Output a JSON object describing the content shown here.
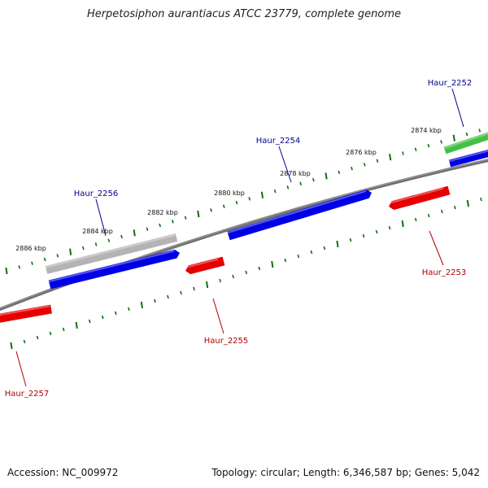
{
  "title": "Herpetosiphon aurantiacus ATCC 23779, complete genome",
  "footer": {
    "accession": "Accession: NC_009972",
    "summary": "Topology: circular; Length: 6,346,587 bp; Genes: 5,042"
  },
  "colors": {
    "backbone": "#707070",
    "tick": "#107010",
    "forward_gene": "#0000e6",
    "reverse_gene": "#e60000",
    "rna_gene": "#44c044",
    "pseudo_gene": "#b4b4b4",
    "forward_label": "#00008b",
    "reverse_label": "#b00000"
  },
  "scale": {
    "labels": [
      "2874 kbp",
      "2876 kbp",
      "2878 kbp",
      "2880 kbp",
      "2882 kbp",
      "2884 kbp",
      "2886 kbp"
    ]
  },
  "genes": [
    {
      "label": "Haur_2252",
      "strand": "forward",
      "type": "rna"
    },
    {
      "label": "Haur_2253",
      "strand": "reverse",
      "type": "cds"
    },
    {
      "label": "Haur_2254",
      "strand": "forward",
      "type": "cds"
    },
    {
      "label": "Haur_2255",
      "strand": "reverse",
      "type": "cds"
    },
    {
      "label": "Haur_2256",
      "strand": "forward",
      "type": "pseudo"
    },
    {
      "label": "Haur_2257",
      "strand": "reverse",
      "type": "cds"
    }
  ]
}
